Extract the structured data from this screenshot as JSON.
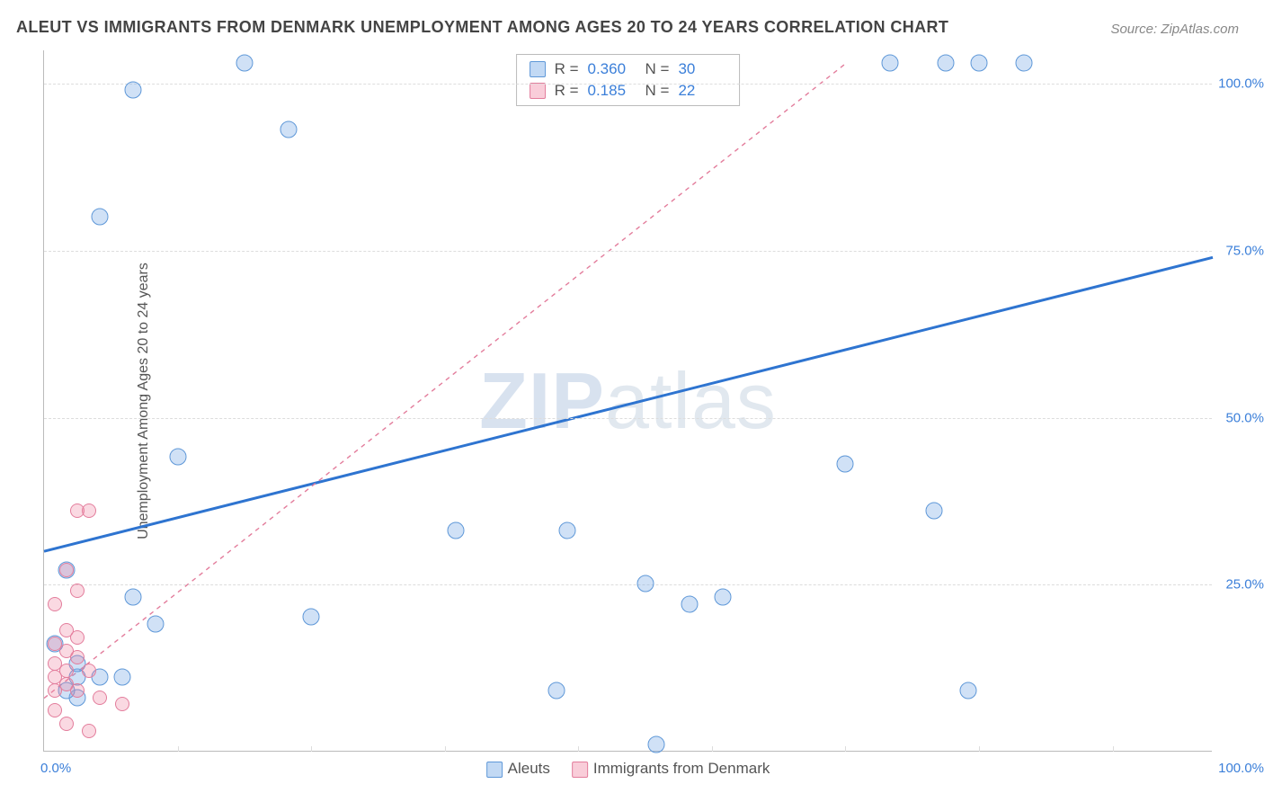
{
  "title": "ALEUT VS IMMIGRANTS FROM DENMARK UNEMPLOYMENT AMONG AGES 20 TO 24 YEARS CORRELATION CHART",
  "source": "Source: ZipAtlas.com",
  "ylabel": "Unemployment Among Ages 20 to 24 years",
  "watermark_a": "ZIP",
  "watermark_b": "atlas",
  "chart": {
    "type": "scatter",
    "xlim": [
      0,
      105
    ],
    "ylim": [
      0,
      105
    ],
    "grid_y": [
      25,
      50,
      75,
      100
    ],
    "grid_x_minor": [
      12,
      24,
      36,
      48,
      60,
      72,
      84,
      96
    ],
    "ytick_labels": {
      "25": "25.0%",
      "50": "50.0%",
      "75": "75.0%",
      "100": "100.0%"
    },
    "xtick_left": "0.0%",
    "xtick_right": "100.0%",
    "background_color": "#ffffff",
    "grid_color": "#dddddd",
    "series": [
      {
        "name": "Aleuts",
        "color_fill": "rgba(120,170,230,0.35)",
        "color_stroke": "#5f98d8",
        "marker_size": 19,
        "trend": {
          "x1": 0,
          "y1": 30,
          "x2": 105,
          "y2": 74,
          "stroke": "#2e74d0",
          "width": 3,
          "dash": "none"
        },
        "R": "0.360",
        "N": "30",
        "points": [
          [
            8,
            99
          ],
          [
            18,
            103
          ],
          [
            22,
            93
          ],
          [
            5,
            80
          ],
          [
            12,
            44
          ],
          [
            37,
            33
          ],
          [
            47,
            33
          ],
          [
            54,
            25
          ],
          [
            58,
            22
          ],
          [
            2,
            27
          ],
          [
            8,
            23
          ],
          [
            10,
            19
          ],
          [
            24,
            20
          ],
          [
            3,
            11
          ],
          [
            5,
            11
          ],
          [
            7,
            11
          ],
          [
            3,
            8
          ],
          [
            46,
            9
          ],
          [
            55,
            1
          ],
          [
            72,
            43
          ],
          [
            80,
            36
          ],
          [
            83,
            9
          ],
          [
            76,
            103
          ],
          [
            81,
            103
          ],
          [
            84,
            103
          ],
          [
            88,
            103
          ],
          [
            61,
            23
          ],
          [
            1,
            16
          ],
          [
            3,
            13
          ],
          [
            2,
            9
          ]
        ]
      },
      {
        "name": "Immigrants from Denmark",
        "color_fill": "rgba(240,130,160,0.3)",
        "color_stroke": "#e37d9c",
        "marker_size": 16,
        "trend": {
          "x1": 0,
          "y1": 8,
          "x2": 72,
          "y2": 103,
          "stroke": "#e37d9c",
          "width": 1.4,
          "dash": "5,5"
        },
        "R": "0.185",
        "N": "22",
        "points": [
          [
            3,
            36
          ],
          [
            4,
            36
          ],
          [
            2,
            27
          ],
          [
            3,
            24
          ],
          [
            1,
            22
          ],
          [
            2,
            18
          ],
          [
            3,
            17
          ],
          [
            1,
            16
          ],
          [
            2,
            15
          ],
          [
            3,
            14
          ],
          [
            1,
            13
          ],
          [
            2,
            12
          ],
          [
            4,
            12
          ],
          [
            1,
            11
          ],
          [
            2,
            10
          ],
          [
            1,
            9
          ],
          [
            3,
            9
          ],
          [
            5,
            8
          ],
          [
            7,
            7
          ],
          [
            1,
            6
          ],
          [
            2,
            4
          ],
          [
            4,
            3
          ]
        ]
      }
    ],
    "legend_top_labels": {
      "R": "R =",
      "N": "N ="
    },
    "legend_bottom": [
      "Aleuts",
      "Immigrants from Denmark"
    ]
  }
}
